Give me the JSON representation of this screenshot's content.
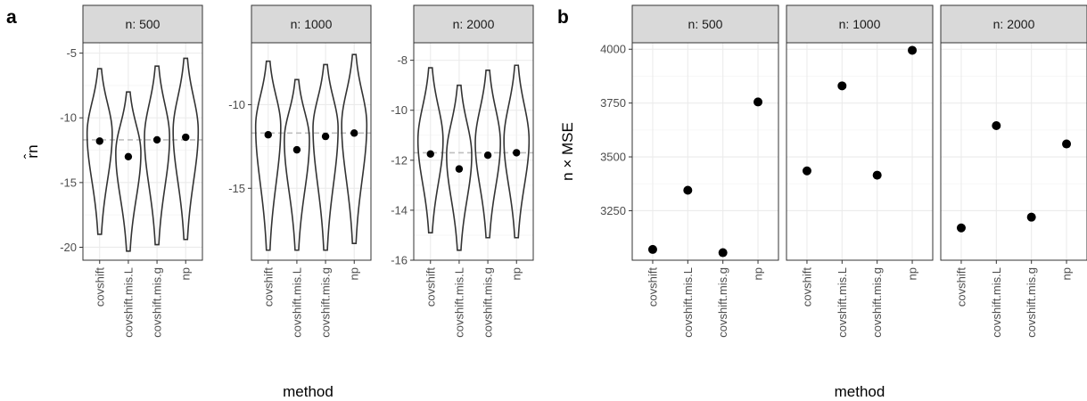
{
  "panel_a_letter": "a",
  "panel_b_letter": "b",
  "colors": {
    "strip_fill": "#d9d9d9",
    "strip_border": "#333333",
    "grid_major": "#ebebeb",
    "grid_minor": "#f5f5f5",
    "violin": "#333333",
    "point": "#000000",
    "reference_line": "#bfbfbf"
  },
  "chart_data": [
    {
      "type": "violin",
      "panel": "a",
      "xlabel": "method",
      "ylabel": "r̂n",
      "categories": [
        "covshift",
        "covshift.mis.L",
        "covshift.mis.g",
        "np"
      ],
      "reference_line": -11.7,
      "facets": [
        {
          "label": "n: 500",
          "ylim": [
            -21,
            -4.2
          ],
          "yticks": [
            -20,
            -15,
            -10,
            -5
          ],
          "means": [
            -11.8,
            -13.0,
            -11.7,
            -11.5
          ],
          "violins": [
            {
              "min": -19.0,
              "max": -6.2,
              "peak": -11.2
            },
            {
              "min": -20.3,
              "max": -8.0,
              "peak": -12.7
            },
            {
              "min": -19.8,
              "max": -6.0,
              "peak": -11.5
            },
            {
              "min": -19.4,
              "max": -5.4,
              "peak": -11.0
            }
          ]
        },
        {
          "label": "n: 1000",
          "ylim": [
            -19.3,
            -6.3
          ],
          "yticks": [
            -15,
            -10
          ],
          "means": [
            -11.8,
            -12.7,
            -11.9,
            -11.7
          ],
          "violins": [
            {
              "min": -18.7,
              "max": -7.4,
              "peak": -11.3
            },
            {
              "min": -18.7,
              "max": -8.5,
              "peak": -12.1
            },
            {
              "min": -18.7,
              "max": -7.6,
              "peak": -11.4
            },
            {
              "min": -18.3,
              "max": -7.0,
              "peak": -11.2
            }
          ]
        },
        {
          "label": "n: 2000",
          "ylim": [
            -16.0,
            -7.3
          ],
          "yticks": [
            -16,
            -14,
            -12,
            -10,
            -8
          ],
          "means": [
            -11.75,
            -12.35,
            -11.8,
            -11.7
          ],
          "violins": [
            {
              "min": -14.9,
              "max": -8.3,
              "peak": -11.2
            },
            {
              "min": -15.6,
              "max": -9.0,
              "peak": -11.8
            },
            {
              "min": -15.1,
              "max": -8.4,
              "peak": -11.3
            },
            {
              "min": -15.1,
              "max": -8.2,
              "peak": -11.2
            }
          ]
        }
      ]
    },
    {
      "type": "scatter",
      "panel": "b",
      "xlabel": "method",
      "ylabel": "n × MSE",
      "categories": [
        "covshift",
        "covshift.mis.L",
        "covshift.mis.g",
        "np"
      ],
      "ylim": [
        3020,
        4030
      ],
      "yticks": [
        3250,
        3500,
        3750,
        4000
      ],
      "facets": [
        {
          "label": "n: 500",
          "values": [
            3070,
            3345,
            3055,
            3755
          ]
        },
        {
          "label": "n: 1000",
          "values": [
            3435,
            3830,
            3415,
            3995
          ]
        },
        {
          "label": "n: 2000",
          "values": [
            3170,
            3645,
            3220,
            3560
          ]
        }
      ]
    }
  ]
}
